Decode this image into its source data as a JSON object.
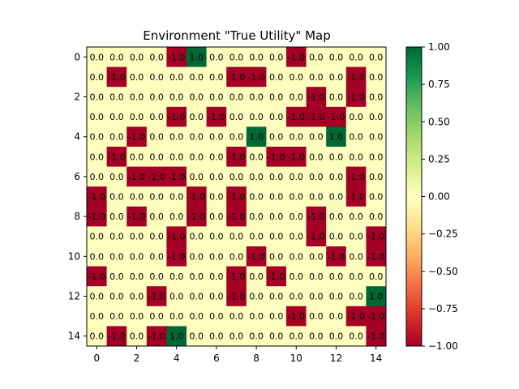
{
  "chart_data": {
    "type": "heatmap",
    "title": "Environment \"True Utility\" Map",
    "xlabel": "",
    "ylabel": "",
    "x_ticks": [
      "0",
      "2",
      "4",
      "6",
      "8",
      "10",
      "12",
      "14"
    ],
    "y_ticks": [
      "0",
      "2",
      "4",
      "6",
      "8",
      "10",
      "12",
      "14"
    ],
    "rows": 15,
    "cols": 15,
    "colormap": "RdYlGn",
    "vmin": -1.0,
    "vmax": 1.0,
    "colorbar_ticks": [
      "1.00",
      "0.75",
      "0.50",
      "0.25",
      "0.00",
      "−0.25",
      "−0.50",
      "−0.75",
      "−1.00"
    ],
    "colorbar_tick_values": [
      1.0,
      0.75,
      0.5,
      0.25,
      0.0,
      -0.25,
      -0.5,
      -0.75,
      -1.0
    ],
    "values": [
      [
        0,
        0,
        0,
        0,
        -1,
        1,
        0,
        0,
        0,
        0,
        -1,
        0,
        0,
        0,
        0
      ],
      [
        0,
        -1,
        0,
        0,
        0,
        0,
        0,
        -1,
        -1,
        0,
        0,
        0,
        0,
        -1,
        0
      ],
      [
        0,
        0,
        0,
        0,
        0,
        0,
        0,
        0,
        0,
        0,
        0,
        -1,
        0,
        -1,
        0
      ],
      [
        0,
        0,
        0,
        0,
        -1,
        0,
        -1,
        0,
        0,
        0,
        -1,
        -1,
        -1,
        0,
        0
      ],
      [
        0,
        0,
        -1,
        0,
        0,
        0,
        0,
        0,
        1,
        0,
        0,
        0,
        1,
        0,
        0
      ],
      [
        0,
        -1,
        0,
        0,
        0,
        0,
        0,
        -1,
        0,
        -1,
        -1,
        0,
        0,
        0,
        0
      ],
      [
        0,
        0,
        -1,
        -1,
        -1,
        0,
        0,
        0,
        0,
        0,
        0,
        0,
        0,
        -1,
        0
      ],
      [
        -1,
        0,
        0,
        0,
        0,
        -1,
        0,
        -1,
        0,
        0,
        0,
        0,
        0,
        -1,
        0
      ],
      [
        -1,
        0,
        -1,
        0,
        0,
        -1,
        0,
        -1,
        0,
        0,
        0,
        -1,
        0,
        0,
        0
      ],
      [
        0,
        0,
        0,
        0,
        -1,
        0,
        0,
        0,
        0,
        0,
        0,
        -1,
        0,
        0,
        -1
      ],
      [
        0,
        0,
        0,
        0,
        -1,
        0,
        0,
        0,
        -1,
        0,
        0,
        0,
        -1,
        0,
        -1
      ],
      [
        -1,
        0,
        0,
        0,
        0,
        0,
        0,
        -1,
        0,
        -1,
        0,
        0,
        0,
        0,
        0
      ],
      [
        0,
        0,
        0,
        -1,
        0,
        0,
        0,
        -1,
        0,
        0,
        0,
        0,
        0,
        0,
        1
      ],
      [
        0,
        0,
        0,
        0,
        0,
        0,
        0,
        0,
        0,
        0,
        -1,
        0,
        0,
        -1,
        -1
      ],
      [
        0,
        -1,
        0,
        -1,
        1,
        0,
        0,
        0,
        0,
        0,
        0,
        0,
        0,
        0,
        -1
      ]
    ],
    "colors": {
      "negative": "#a50026",
      "neutral": "#feffbe",
      "positive": "#006837"
    }
  }
}
